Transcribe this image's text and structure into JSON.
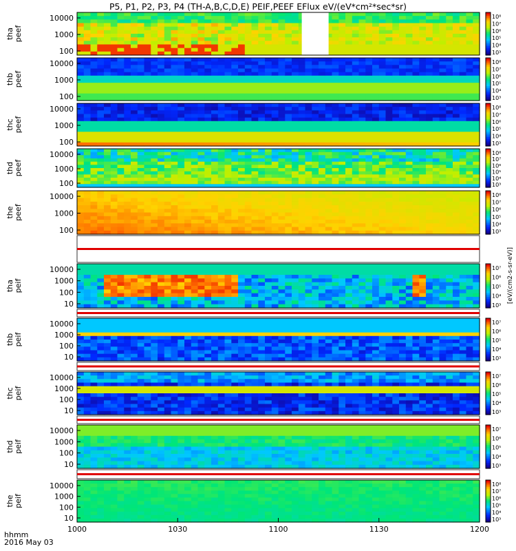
{
  "title": "P5, P1, P2, P3, P4 (TH-A,B,C,D,E) PEIF,PEEF EFlux eV/(eV*cm²*sec*sr)",
  "footer": {
    "xlabel": "hhmm",
    "date": "2016 May 03"
  },
  "colorbar_label": "[eV/(cm2-s-sr-eV)]",
  "chart_data": {
    "type": "heatmap",
    "colormap": "rainbow (blue–green–yellow–red)",
    "x_ticks": [
      "1000",
      "1030",
      "1100",
      "1130",
      "1200"
    ],
    "x_range": [
      "10:00",
      "12:00"
    ],
    "panels": [
      {
        "probe": "tha",
        "product": "peef",
        "y_ticks": [
          "10000",
          "1000",
          "100"
        ],
        "cbar_ticks": [
          "10⁸",
          "10⁷",
          "10⁶",
          "10⁵",
          "10⁴",
          "10³"
        ],
        "gap": [
          "11:07",
          "11:15"
        ],
        "description": "burst of hot plasma at low energies"
      },
      {
        "probe": "thb",
        "product": "peef",
        "y_ticks": [
          "10000",
          "1000",
          "100"
        ],
        "cbar_ticks": [
          "10⁸",
          "10⁷",
          "10⁶",
          "10⁵",
          "10⁴",
          "10³"
        ]
      },
      {
        "probe": "thc",
        "product": "peef",
        "y_ticks": [
          "10000",
          "1000",
          "100"
        ],
        "cbar_ticks": [
          "10⁸",
          "10⁷",
          "10⁶",
          "10⁵",
          "10⁴",
          "10³"
        ]
      },
      {
        "probe": "thd",
        "product": "peef",
        "y_ticks": [
          "10000",
          "1000",
          "100"
        ],
        "cbar_ticks": [
          "10⁸",
          "10⁷",
          "10⁶",
          "10⁵",
          "10⁴",
          "10³"
        ]
      },
      {
        "probe": "the",
        "product": "peef",
        "y_ticks": [
          "10000",
          "1000",
          "100"
        ],
        "cbar_ticks": [
          "10⁸",
          "10⁷",
          "10⁶",
          "10⁵",
          "10⁴",
          "10³"
        ]
      },
      {
        "probe": "tha",
        "product": "peif",
        "y_ticks": [
          "10000",
          "1000",
          "100",
          "10"
        ],
        "cbar_ticks": [
          "10⁷",
          "10⁶",
          "10⁵",
          "10⁴",
          "10³"
        ]
      },
      {
        "probe": "thb",
        "product": "peif",
        "y_ticks": [
          "10000",
          "1000",
          "100",
          "10"
        ],
        "cbar_ticks": [
          "10⁷",
          "10⁶",
          "10⁵",
          "10⁴",
          "10³"
        ]
      },
      {
        "probe": "thc",
        "product": "peif",
        "y_ticks": [
          "10000",
          "1000",
          "100",
          "10"
        ],
        "cbar_ticks": [
          "10⁷",
          "10⁶",
          "10⁵",
          "10⁴",
          "10³"
        ]
      },
      {
        "probe": "thd",
        "product": "peif",
        "y_ticks": [
          "10000",
          "1000",
          "100",
          "10"
        ],
        "cbar_ticks": [
          "10⁷",
          "10⁶",
          "10⁵",
          "10⁴",
          "10³"
        ]
      },
      {
        "probe": "the",
        "product": "peif",
        "y_ticks": [
          "10000",
          "1000",
          "100",
          "10"
        ],
        "cbar_ticks": [
          "10⁸",
          "10⁷",
          "10⁶",
          "10⁵",
          "10⁴",
          "10³"
        ]
      }
    ]
  }
}
